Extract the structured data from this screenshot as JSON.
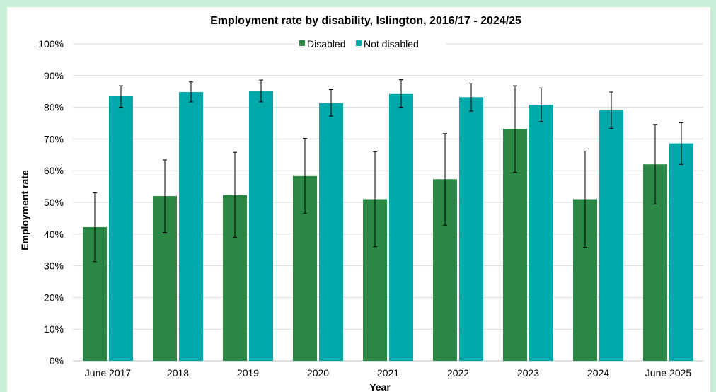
{
  "colors": {
    "page_background": "#c9eed6",
    "disabled": "#2a8744",
    "not_disabled": "#00a9a9",
    "gridline": "#d9d9d9",
    "axis": "#bfbfbf",
    "error_bar": "#000000"
  },
  "chart_data": {
    "type": "bar",
    "title": "Employment rate by disability, Islington, 2016/17 - 2024/25",
    "xlabel": "Year",
    "ylabel": "Employment rate",
    "ylim": [
      0,
      100
    ],
    "yticks": [
      0,
      10,
      20,
      30,
      40,
      50,
      60,
      70,
      80,
      90,
      100
    ],
    "ytick_labels": [
      "0%",
      "10%",
      "20%",
      "30%",
      "40%",
      "50%",
      "60%",
      "70%",
      "80%",
      "90%",
      "100%"
    ],
    "grid": true,
    "legend_position": "top",
    "error_bars": true,
    "categories": [
      "June 2017",
      "2018",
      "2019",
      "2020",
      "2021",
      "2022",
      "2023",
      "2024",
      "June 2025"
    ],
    "series": [
      {
        "name": "Disabled",
        "color": "#2a8744",
        "values": [
          42.2,
          52.0,
          52.3,
          58.3,
          51.0,
          57.3,
          73.2,
          51.0,
          62.0
        ],
        "error_low": [
          31.3,
          40.5,
          39.0,
          46.5,
          36.0,
          42.8,
          59.5,
          35.8,
          49.5
        ],
        "error_high": [
          53.0,
          63.4,
          65.8,
          70.2,
          66.0,
          71.7,
          86.8,
          66.2,
          74.6
        ]
      },
      {
        "name": "Not disabled",
        "color": "#00a9a9",
        "values": [
          83.5,
          84.8,
          85.2,
          81.3,
          84.2,
          83.2,
          80.8,
          79.0,
          68.6
        ],
        "error_low": [
          80.0,
          81.7,
          81.7,
          77.2,
          80.0,
          78.8,
          75.5,
          73.3,
          62.0
        ],
        "error_high": [
          86.8,
          88.0,
          88.6,
          85.6,
          88.7,
          87.6,
          86.1,
          84.8,
          75.1
        ]
      }
    ]
  }
}
